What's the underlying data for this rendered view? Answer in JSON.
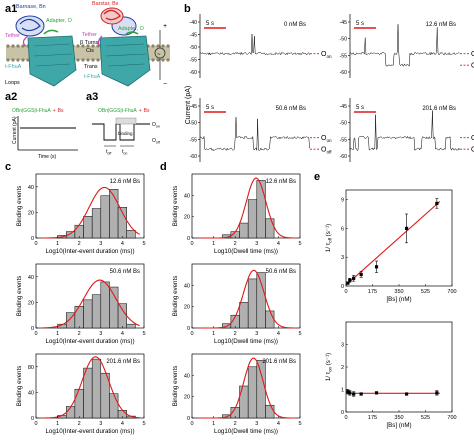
{
  "panel_labels": {
    "a1": "a1",
    "a2": "a2",
    "a3": "a3",
    "b": "b",
    "c": "c",
    "d": "d",
    "e": "e"
  },
  "panel_a1": {
    "barnase": "Barnase, Bn",
    "barstar": "Barstar, Bs",
    "adapter": "Adapter, O",
    "adapter2": "Adapter, O",
    "tether1": "Tether",
    "tether2": "Tether",
    "beta_turns": "β Turns",
    "cis": "Cis",
    "trans": "Trans",
    "loops": "Loops",
    "tfhua1": "t-FhuA",
    "tfhua2": "t-FhuA"
  },
  "panel_a2": {
    "ylabel": "Current (pA)",
    "xlabel": "Time (s)",
    "construct": "OBn|GGS|t-FhuA",
    "plus": "+",
    "bs": "Bs"
  },
  "panel_a3": {
    "construct": "OBn|GGS|t-FhuA",
    "plus": "+",
    "bs": "Bs",
    "binding": "binding",
    "O_on": "O",
    "O_on_sub": "on",
    "O_off": "O",
    "O_off_sub": "off",
    "t_off": "t",
    "t_off_sub": "off",
    "t_on": "t",
    "t_on_sub": "on"
  },
  "panel_b": {
    "ylabel": "Current (pA)",
    "scalebar": "5 s",
    "traces": [
      {
        "label": "0 nM Bs",
        "ticks": [
          "-40",
          "-45",
          "-50",
          "-55",
          "-60"
        ],
        "on_label": "O",
        "on_sub": "on",
        "off_label": "",
        "off_sub": ""
      },
      {
        "label": "12.6 nM Bs",
        "ticks": [
          "-45",
          "-50",
          "-55",
          "-60"
        ],
        "on_label": "O",
        "on_sub": "on",
        "off_label": "O",
        "off_sub": "off"
      },
      {
        "label": "50.6 nM Bs",
        "ticks": [
          "-45",
          "-50",
          "-55",
          "-60"
        ],
        "on_label": "O",
        "on_sub": "on",
        "off_label": "O",
        "off_sub": "off"
      },
      {
        "label": "201.6 nM Bs",
        "ticks": [
          "-45",
          "-50",
          "-55",
          "-60"
        ],
        "on_label": "O",
        "on_sub": "on",
        "off_label": "O",
        "off_sub": "off"
      }
    ]
  },
  "chart_data": [
    {
      "type": "bar",
      "panel": "c",
      "ylabel": "Binding events",
      "xlabel": "Log10(Inter-event duration (ms))",
      "xlim": [
        0,
        5
      ],
      "xticks": [
        "0",
        "1",
        "2",
        "3",
        "4",
        "5"
      ],
      "subplots": [
        {
          "label": "12.6 nM Bs",
          "yticks": [
            "0",
            "20",
            "40"
          ],
          "ylim": [
            0,
            50
          ],
          "bin_centers": [
            1.2,
            1.6,
            2.0,
            2.4,
            2.8,
            3.2,
            3.6,
            4.0,
            4.4
          ],
          "values": [
            2,
            5,
            10,
            17,
            23,
            33,
            38,
            24,
            6
          ]
        },
        {
          "label": "50.6 nM Bs",
          "yticks": [
            "0",
            "20",
            "40"
          ],
          "ylim": [
            0,
            50
          ],
          "bin_centers": [
            1.2,
            1.6,
            2.0,
            2.4,
            2.8,
            3.2,
            3.6,
            4.0,
            4.4
          ],
          "values": [
            3,
            12,
            17,
            22,
            26,
            36,
            32,
            19,
            3
          ]
        },
        {
          "label": "201.6 nM Bs",
          "yticks": [
            "0",
            "40",
            "80"
          ],
          "ylim": [
            0,
            100
          ],
          "bin_centers": [
            1.2,
            1.6,
            2.0,
            2.4,
            2.8,
            3.2,
            3.6,
            4.0,
            4.4
          ],
          "values": [
            4,
            18,
            45,
            78,
            92,
            70,
            38,
            12,
            3
          ]
        }
      ]
    },
    {
      "type": "bar",
      "panel": "d",
      "ylabel": "Binding events",
      "xlabel": "Log10(Dwell time (ms))",
      "xlim": [
        0,
        5
      ],
      "xticks": [
        "0",
        "1",
        "2",
        "3",
        "4",
        "5"
      ],
      "subplots": [
        {
          "label": "12.6 nM Bs",
          "yticks": [
            "0",
            "20",
            "40"
          ],
          "ylim": [
            0,
            60
          ],
          "bin_centers": [
            1.6,
            2.0,
            2.4,
            2.8,
            3.2,
            3.6
          ],
          "values": [
            3,
            6,
            14,
            36,
            54,
            18
          ]
        },
        {
          "label": "50.6 nM Bs",
          "yticks": [
            "0",
            "20",
            "40"
          ],
          "ylim": [
            0,
            60
          ],
          "bin_centers": [
            1.6,
            2.0,
            2.4,
            2.8,
            3.2,
            3.6
          ],
          "values": [
            4,
            12,
            24,
            46,
            52,
            16
          ]
        },
        {
          "label": "201.6 nM Bs",
          "yticks": [
            "0",
            "20",
            "40"
          ],
          "ylim": [
            0,
            60
          ],
          "bin_centers": [
            1.6,
            2.0,
            2.4,
            2.8,
            3.2,
            3.6
          ],
          "values": [
            3,
            10,
            30,
            48,
            54,
            12
          ]
        }
      ]
    },
    {
      "type": "scatter",
      "panel": "e",
      "xlabel": "[Bs] (nM)",
      "xlim": [
        0,
        700
      ],
      "xticks": [
        "0",
        "175",
        "350",
        "525",
        "700"
      ],
      "subplots": [
        {
          "ylabel": "1/τ_off (s⁻¹)",
          "ylabel_main": "1/ τ",
          "ylabel_sub": "off",
          "ylabel_unit": " (s⁻¹)",
          "ylim": [
            0,
            10
          ],
          "yticks": [
            "0",
            "3",
            "6",
            "9"
          ],
          "x": [
            12.6,
            25,
            50.6,
            100,
            201.6,
            400,
            600
          ],
          "y": [
            0.3,
            0.6,
            0.8,
            1.2,
            2.0,
            6.0,
            8.6
          ],
          "err": [
            0.1,
            0.2,
            0.3,
            0.3,
            0.6,
            1.5,
            0.5
          ],
          "fit": [
            [
              0,
              0.1
            ],
            [
              620,
              8.8
            ]
          ]
        },
        {
          "ylabel": "1/τ_on (s⁻¹)",
          "ylabel_main": "1/ τ",
          "ylabel_sub": "on",
          "ylabel_unit": " (s⁻¹)",
          "ylim": [
            0,
            4
          ],
          "yticks": [
            "0",
            "1",
            "2",
            "3"
          ],
          "x": [
            12.6,
            25,
            50.6,
            100,
            201.6,
            400,
            600
          ],
          "y": [
            0.9,
            0.85,
            0.8,
            0.8,
            0.85,
            0.8,
            0.85
          ],
          "err": [
            0.1,
            0.1,
            0.1,
            0.05,
            0.05,
            0.05,
            0.1
          ],
          "fit": [
            [
              0,
              0.83
            ],
            [
              620,
              0.83
            ]
          ]
        }
      ]
    }
  ],
  "colors": {
    "barnase": "#1f3f9f",
    "barstar": "#d22222",
    "adapter": "#2f9f3a",
    "tfhua": "#3fa7a8",
    "tether": "#c33fbf",
    "fit": "#e01919",
    "dashed": "#e01919",
    "bar_fill": "#b0b0b0",
    "membrane": "#c8c2a6"
  }
}
